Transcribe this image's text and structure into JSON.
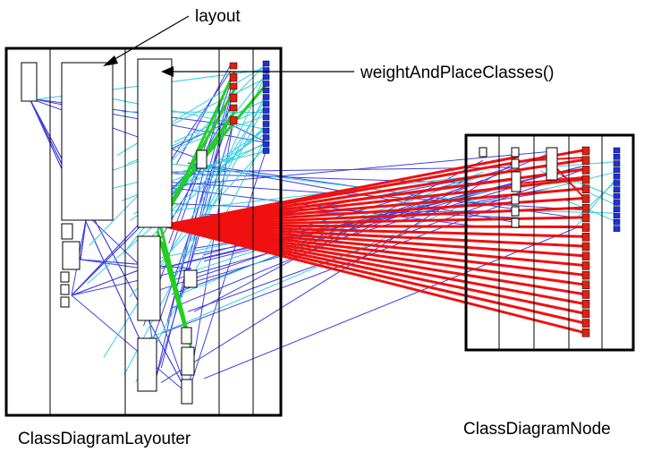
{
  "annotations": {
    "layout": "layout",
    "weight_and_place": "weightAndPlaceClasses()"
  },
  "classes": {
    "left": "ClassDiagramLayouter",
    "right": "ClassDiagramNode"
  },
  "colors": {
    "frame": "#000000",
    "method_box": "#ffffff",
    "attribute_marker": "#e02010",
    "operation_marker": "#2030e0",
    "call_edge": "#4040e0",
    "field_edge": "#30d0e0",
    "local_call_edge": "#20d020",
    "highlight_edge": "#f01010"
  }
}
